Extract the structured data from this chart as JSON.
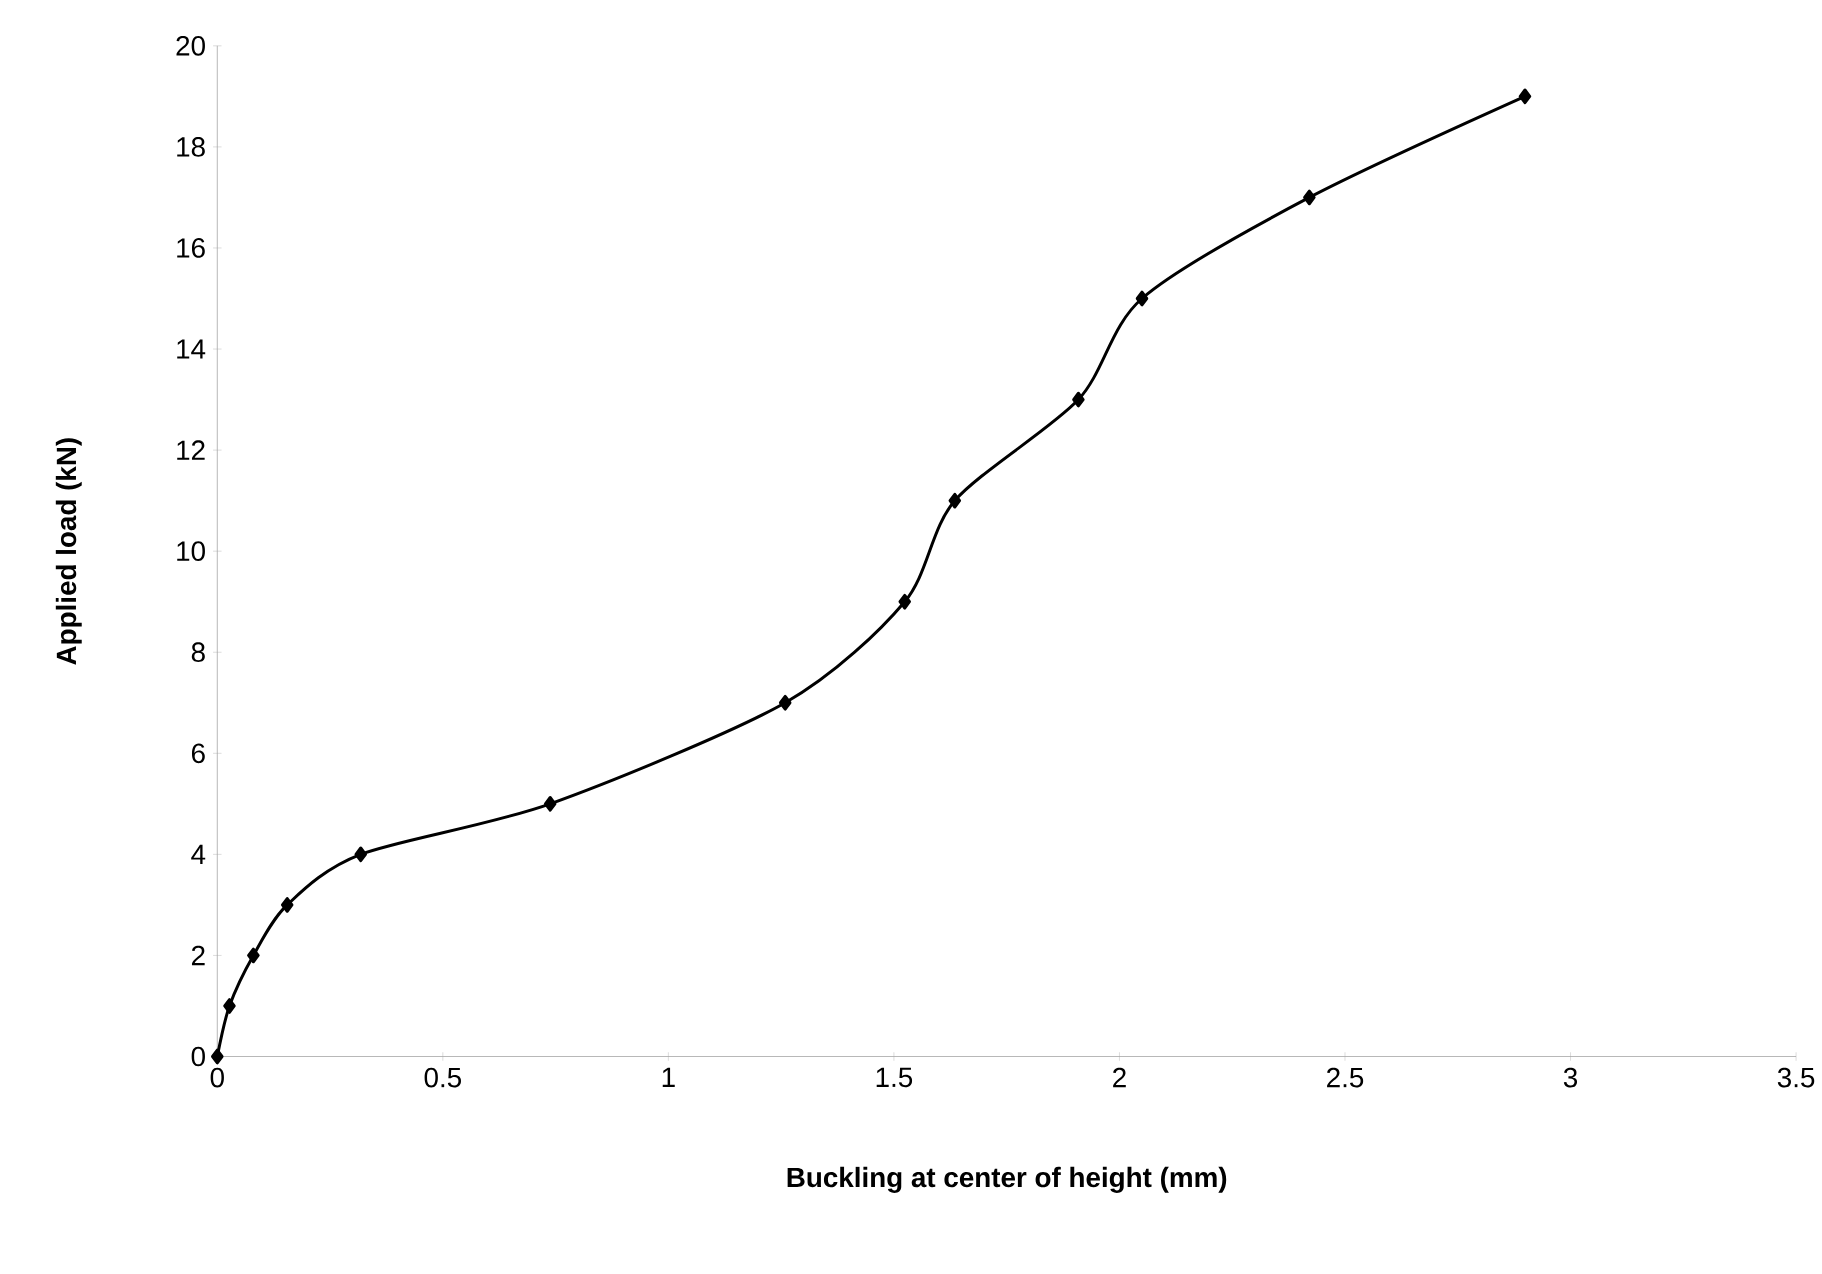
{
  "chart_data": {
    "type": "line",
    "xlabel": "Buckling at center of height (mm)",
    "ylabel": "Applied load (kN)",
    "x": [
      0,
      0.027,
      0.08,
      0.155,
      0.318,
      0.738,
      1.259,
      1.524,
      1.635,
      1.909,
      2.05,
      2.421,
      2.899
    ],
    "values": [
      0,
      1,
      2,
      3,
      4,
      5,
      7,
      9,
      11,
      13,
      15,
      17,
      19
    ],
    "color": "#000000",
    "marker": "diamond",
    "line_style": "solid",
    "xlim": [
      0,
      3.5
    ],
    "xticks": [
      0,
      0.5,
      1,
      1.5,
      2,
      2.5,
      3,
      3.5
    ],
    "ylim": [
      0,
      20
    ],
    "yticks": [
      0,
      2,
      4,
      6,
      8,
      10,
      12,
      14,
      16,
      18,
      20
    ]
  }
}
